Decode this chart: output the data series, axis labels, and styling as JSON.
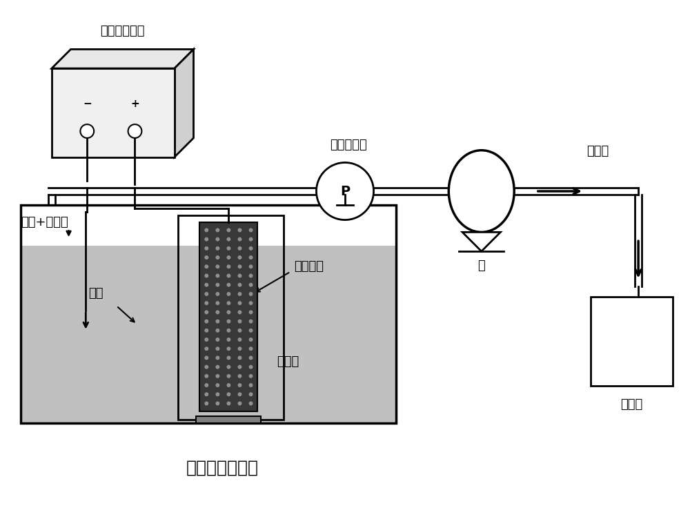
{
  "title": "电催化膜反应器",
  "label_power": "直流稳压电源",
  "label_pressure": "真空压力表",
  "label_permeate": "透过液",
  "label_pump": "泵",
  "label_alcohol": "醇类+电解质",
  "label_cathode": "阴极",
  "label_membrane": "电催化膜",
  "label_reaction": "反应液",
  "label_product": "醛或酸",
  "label_P": "P",
  "bg_color": "#ffffff",
  "tank_fill": "#c0c0c0",
  "membrane_fill": "#383838",
  "line_color": "#000000",
  "font_size_title": 18,
  "font_size_label": 13
}
